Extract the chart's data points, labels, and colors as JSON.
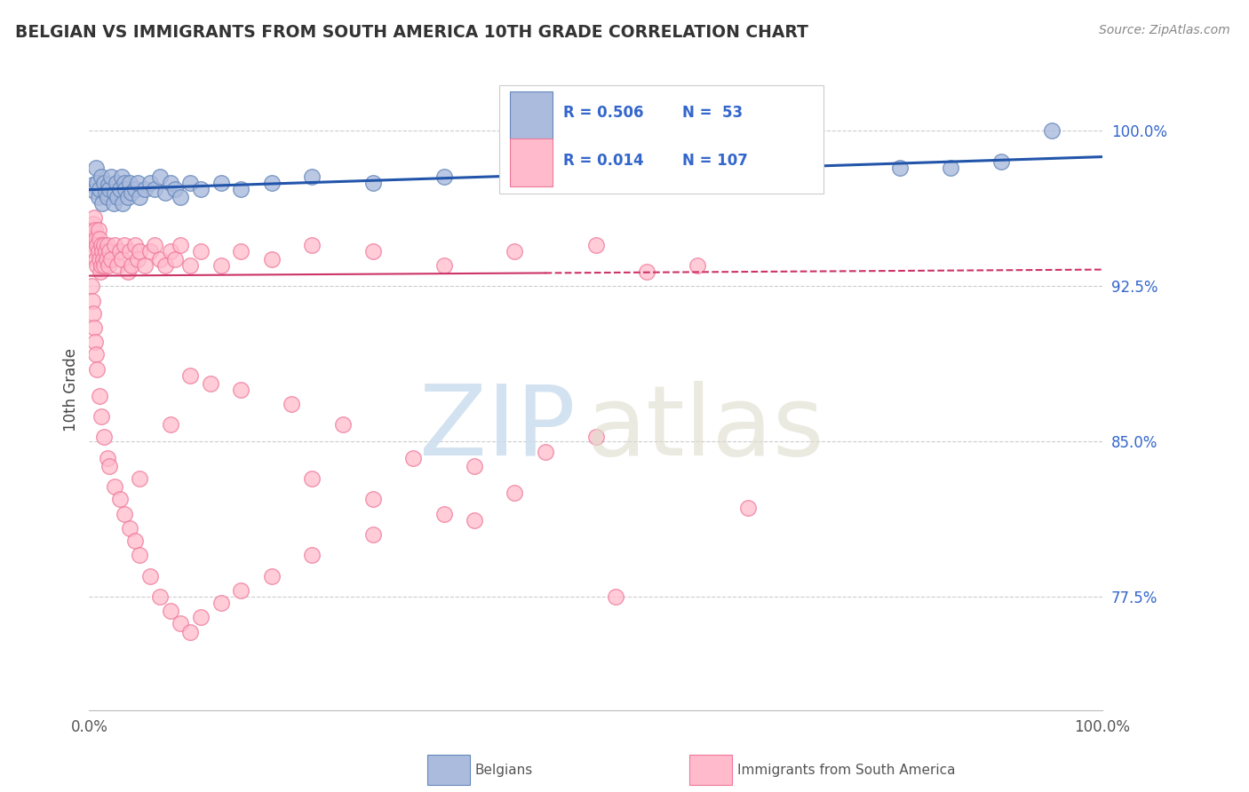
{
  "title": "BELGIAN VS IMMIGRANTS FROM SOUTH AMERICA 10TH GRADE CORRELATION CHART",
  "source_text": "Source: ZipAtlas.com",
  "ylabel": "10th Grade",
  "ytick_values": [
    1.0,
    0.925,
    0.85,
    0.775
  ],
  "blue_line_color": "#2255AA",
  "pink_line_color": "#CC3366",
  "background_color": "#FFFFFF",
  "blue_fc": "#AABBDD",
  "blue_ec": "#6688BB",
  "pink_fc": "#FFBBCC",
  "pink_ec": "#EE7799",
  "blue_scatter_x": [
    0.003,
    0.005,
    0.007,
    0.008,
    0.009,
    0.01,
    0.012,
    0.013,
    0.015,
    0.016,
    0.018,
    0.019,
    0.02,
    0.022,
    0.024,
    0.025,
    0.027,
    0.028,
    0.03,
    0.032,
    0.033,
    0.035,
    0.036,
    0.038,
    0.04,
    0.042,
    0.045,
    0.048,
    0.05,
    0.055,
    0.06,
    0.065,
    0.07,
    0.075,
    0.08,
    0.085,
    0.09,
    0.1,
    0.11,
    0.13,
    0.15,
    0.18,
    0.22,
    0.28,
    0.35,
    0.42,
    0.5,
    0.6,
    0.7,
    0.8,
    0.85,
    0.9,
    0.95
  ],
  "blue_scatter_y": [
    0.974,
    0.971,
    0.982,
    0.975,
    0.968,
    0.972,
    0.978,
    0.965,
    0.975,
    0.97,
    0.968,
    0.974,
    0.972,
    0.978,
    0.965,
    0.97,
    0.975,
    0.968,
    0.972,
    0.978,
    0.965,
    0.975,
    0.972,
    0.968,
    0.975,
    0.97,
    0.972,
    0.975,
    0.968,
    0.972,
    0.975,
    0.972,
    0.978,
    0.97,
    0.975,
    0.972,
    0.968,
    0.975,
    0.972,
    0.975,
    0.972,
    0.975,
    0.978,
    0.975,
    0.978,
    0.975,
    0.978,
    0.975,
    0.98,
    0.982,
    0.982,
    0.985,
    1.0
  ],
  "pink_scatter_x": [
    0.002,
    0.003,
    0.004,
    0.005,
    0.005,
    0.006,
    0.006,
    0.007,
    0.007,
    0.008,
    0.008,
    0.009,
    0.009,
    0.01,
    0.01,
    0.011,
    0.012,
    0.012,
    0.013,
    0.014,
    0.015,
    0.015,
    0.016,
    0.017,
    0.018,
    0.019,
    0.02,
    0.022,
    0.025,
    0.028,
    0.03,
    0.032,
    0.035,
    0.038,
    0.04,
    0.042,
    0.045,
    0.048,
    0.05,
    0.055,
    0.06,
    0.065,
    0.07,
    0.075,
    0.08,
    0.085,
    0.09,
    0.1,
    0.11,
    0.13,
    0.15,
    0.18,
    0.22,
    0.28,
    0.35,
    0.42,
    0.5,
    0.55,
    0.6,
    0.002,
    0.003,
    0.004,
    0.005,
    0.006,
    0.007,
    0.008,
    0.01,
    0.012,
    0.015,
    0.018,
    0.02,
    0.025,
    0.03,
    0.035,
    0.04,
    0.045,
    0.05,
    0.06,
    0.07,
    0.08,
    0.09,
    0.1,
    0.11,
    0.13,
    0.15,
    0.18,
    0.22,
    0.28,
    0.35,
    0.42,
    0.32,
    0.25,
    0.2,
    0.15,
    0.1,
    0.38,
    0.45,
    0.5,
    0.28,
    0.12,
    0.08,
    0.05,
    0.38,
    0.22,
    0.52,
    0.65
  ],
  "pink_scatter_y": [
    0.952,
    0.948,
    0.955,
    0.945,
    0.958,
    0.942,
    0.952,
    0.948,
    0.938,
    0.945,
    0.935,
    0.952,
    0.942,
    0.938,
    0.948,
    0.932,
    0.945,
    0.935,
    0.942,
    0.938,
    0.945,
    0.935,
    0.942,
    0.938,
    0.945,
    0.935,
    0.942,
    0.938,
    0.945,
    0.935,
    0.942,
    0.938,
    0.945,
    0.932,
    0.942,
    0.935,
    0.945,
    0.938,
    0.942,
    0.935,
    0.942,
    0.945,
    0.938,
    0.935,
    0.942,
    0.938,
    0.945,
    0.935,
    0.942,
    0.935,
    0.942,
    0.938,
    0.945,
    0.942,
    0.935,
    0.942,
    0.945,
    0.932,
    0.935,
    0.925,
    0.918,
    0.912,
    0.905,
    0.898,
    0.892,
    0.885,
    0.872,
    0.862,
    0.852,
    0.842,
    0.838,
    0.828,
    0.822,
    0.815,
    0.808,
    0.802,
    0.795,
    0.785,
    0.775,
    0.768,
    0.762,
    0.758,
    0.765,
    0.772,
    0.778,
    0.785,
    0.795,
    0.805,
    0.815,
    0.825,
    0.842,
    0.858,
    0.868,
    0.875,
    0.882,
    0.838,
    0.845,
    0.852,
    0.822,
    0.878,
    0.858,
    0.832,
    0.812,
    0.832,
    0.775,
    0.818
  ]
}
